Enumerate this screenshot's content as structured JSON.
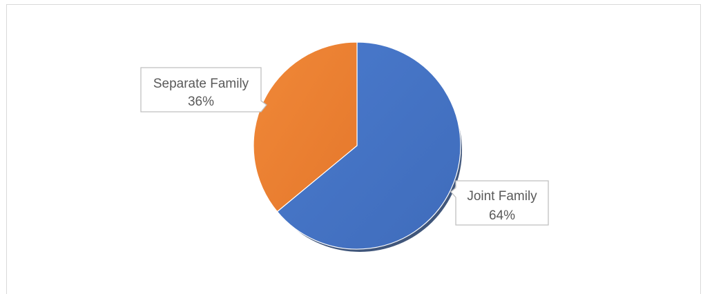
{
  "chart_data": {
    "type": "pie",
    "title": "",
    "slices": [
      {
        "label": "Joint Family",
        "value": 64,
        "value_label": "64%",
        "color": "#4472C4"
      },
      {
        "label": "Separate Family",
        "value": 36,
        "value_label": "36%",
        "color": "#ED7D31"
      }
    ],
    "start_angle_deg": 0,
    "direction": "clockwise",
    "legend": "none",
    "data_labels": "callout"
  }
}
